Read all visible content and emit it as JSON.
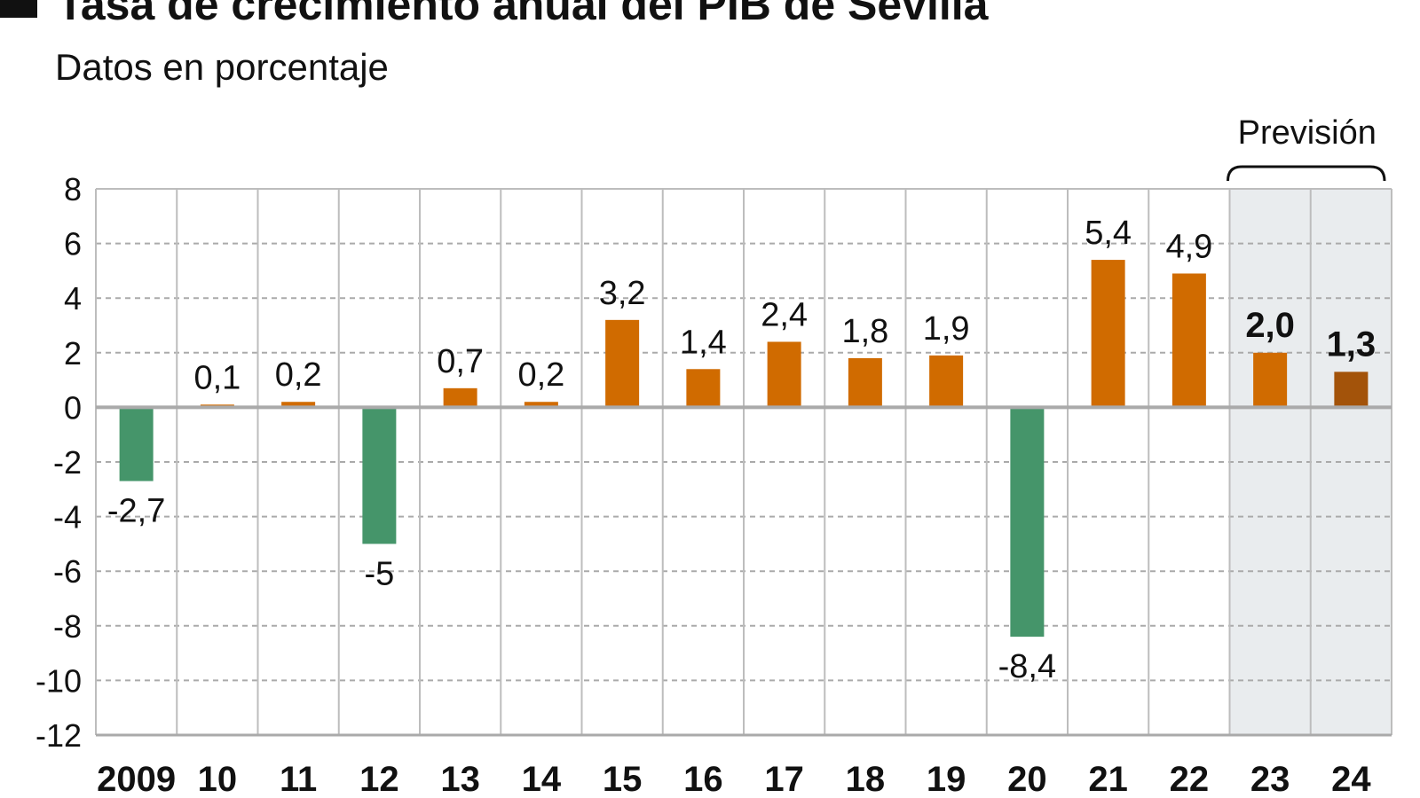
{
  "chart_data": {
    "type": "bar",
    "title": "Tasa de crecimiento anual del PIB de Sevilla",
    "subtitle": "Datos en porcentaje",
    "categories": [
      "2009",
      "10",
      "11",
      "12",
      "13",
      "14",
      "15",
      "16",
      "17",
      "18",
      "19",
      "20",
      "21",
      "22",
      "23",
      "24"
    ],
    "values": [
      -2.7,
      0.1,
      0.2,
      -5,
      0.7,
      0.2,
      3.2,
      1.4,
      2.4,
      1.8,
      1.9,
      -8.4,
      5.4,
      4.9,
      2.0,
      1.3
    ],
    "data_labels": [
      "-2,7",
      "0,1",
      "0,2",
      "-5",
      "0,7",
      "0,2",
      "3,2",
      "1,4",
      "2,4",
      "1,8",
      "1,9",
      "-8,4",
      "5,4",
      "4,9",
      "2,0",
      "1,3"
    ],
    "forecast_label": "Previsión",
    "forecast_categories": [
      "23",
      "24"
    ],
    "ylim": [
      -12,
      8
    ],
    "yticks": [
      8,
      6,
      4,
      2,
      0,
      -2,
      -4,
      -6,
      -8,
      -10,
      -12
    ],
    "grid": true,
    "xlabel": "",
    "ylabel": "",
    "colors": {
      "positive": "#d06b00",
      "negative": "#45956a",
      "last": "#a3530a",
      "forecast_bg": "#e9ecee",
      "grid": "#bdbdbd"
    }
  }
}
